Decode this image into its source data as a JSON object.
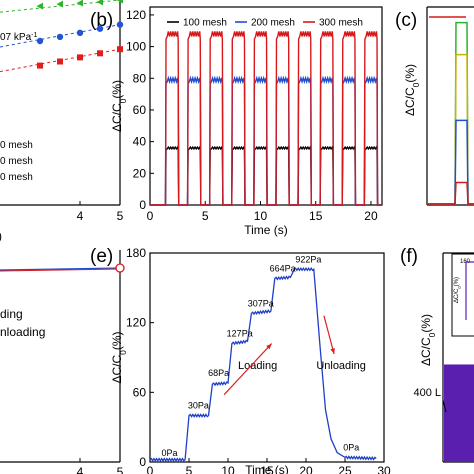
{
  "chart_data": [
    {
      "id": "a",
      "type": "scatter",
      "panel_label": "",
      "visible_text": [
        "07 kPa",
        "0 mesh",
        "0 mesh",
        "0 mesh",
        "4",
        "5"
      ],
      "sensitivity_unit": "-1",
      "xlim": [
        0,
        5
      ],
      "xticks": [
        4,
        5
      ],
      "legend_texts": [
        "0 mesh",
        "0 mesh",
        "0 mesh"
      ],
      "series": [
        {
          "color": "#2ab52a",
          "marker": "triangle-left",
          "x": [
            3.0,
            3.5,
            4.0,
            4.5,
            5.0
          ],
          "y_px_rank": "top",
          "values": [
            0.97,
            0.98,
            0.985,
            0.99,
            1.0
          ]
        },
        {
          "color": "#2255d6",
          "marker": "circle",
          "x": [
            3.0,
            3.5,
            4.0,
            4.5,
            5.0
          ],
          "values": [
            0.8,
            0.82,
            0.84,
            0.86,
            0.88
          ]
        },
        {
          "color": "#e11d1d",
          "marker": "square",
          "x": [
            3.0,
            3.5,
            4.0,
            4.5,
            5.0
          ],
          "values": [
            0.68,
            0.7,
            0.72,
            0.74,
            0.76
          ]
        }
      ]
    },
    {
      "id": "b",
      "type": "line",
      "panel_label": "(b)",
      "xlabel": "Time (s)",
      "ylabel": "ΔC/C0(%)",
      "xlim": [
        0,
        21
      ],
      "ylim": [
        0,
        125
      ],
      "xticks": [
        0,
        5,
        10,
        15,
        20
      ],
      "yticks": [
        0,
        20,
        40,
        60,
        80,
        100,
        120
      ],
      "legend": [
        "100 mesh",
        "200 mesh",
        "300 mesh"
      ],
      "cycles": {
        "count": 10,
        "first_rise": 1.4,
        "period": 2.0,
        "on_duration": 1.15
      },
      "series": [
        {
          "name": "100 mesh",
          "color": "#000000",
          "plateau": 36
        },
        {
          "name": "200 mesh",
          "color": "#1f4fd1",
          "plateau": 79
        },
        {
          "name": "300 mesh",
          "color": "#d7191c",
          "plateau": 108
        }
      ]
    },
    {
      "id": "c",
      "type": "line",
      "panel_label": "(c)",
      "ylabel": "ΔC/C0(%)",
      "series": [
        {
          "color": "#d7191c",
          "plateau": 1.0
        },
        {
          "color": "#2ab52a",
          "plateau": 0.97
        },
        {
          "color": "#c8b400",
          "plateau": 0.8
        },
        {
          "color": "#1f4fd1",
          "plateau": 0.45
        },
        {
          "color": "#d7191c",
          "plateau": 0.12
        }
      ]
    },
    {
      "id": "d",
      "type": "line",
      "panel_label": "",
      "visible_text": [
        "ding",
        "nloading",
        "4",
        "5"
      ],
      "xticks": [
        4,
        5
      ],
      "series": [
        {
          "color": "#1f4fd1",
          "x": [
            0,
            5
          ],
          "values": [
            0.9,
            0.93
          ]
        }
      ]
    },
    {
      "id": "e",
      "type": "line",
      "panel_label": "(e)",
      "xlabel": "Time (s)",
      "ylabel": "ΔC/C0(%)",
      "xlim": [
        0,
        30
      ],
      "ylim": [
        0,
        180
      ],
      "xticks": [
        0,
        5,
        10,
        15,
        20,
        25,
        30
      ],
      "yticks": [
        0,
        60,
        120,
        180
      ],
      "x": [
        0,
        4.5,
        5.0,
        7.5,
        8.0,
        10.0,
        10.5,
        12.5,
        13.0,
        15.5,
        16.0,
        18.0,
        18.5,
        21.0,
        21.8,
        22.5,
        23.2,
        24.0,
        25.0,
        29
      ],
      "values": [
        2,
        2,
        40,
        40,
        67,
        68,
        102,
        104,
        128,
        130,
        158,
        159,
        166,
        166,
        100,
        45,
        20,
        8,
        4,
        3
      ],
      "step_labels": [
        {
          "text": "0Pa",
          "x": 2.5,
          "y": 5
        },
        {
          "text": "30Pa",
          "x": 6.2,
          "y": 46
        },
        {
          "text": "68Pa",
          "x": 8.8,
          "y": 74
        },
        {
          "text": "127Pa",
          "x": 11.5,
          "y": 108
        },
        {
          "text": "307Pa",
          "x": 14.2,
          "y": 134
        },
        {
          "text": "664Pa",
          "x": 17.0,
          "y": 164
        },
        {
          "text": "922Pa",
          "x": 20.3,
          "y": 172
        },
        {
          "text": "0Pa",
          "x": 25.8,
          "y": 10
        }
      ],
      "annotations": [
        {
          "text": "Loading",
          "x": 13.8,
          "y": 80
        },
        {
          "text": "Unloading",
          "x": 24.5,
          "y": 80
        }
      ],
      "arrows": [
        {
          "from": [
            9.5,
            58
          ],
          "to": [
            15.6,
            102
          ]
        },
        {
          "from": [
            22.3,
            126
          ],
          "to": [
            23.6,
            93
          ]
        }
      ]
    },
    {
      "id": "f",
      "type": "area",
      "panel_label": "(f)",
      "ylabel": "ΔC/C0(%)",
      "visible_text": [
        "400 L",
        "160"
      ],
      "inset": {
        "ytick": "160",
        "ylabel": "ΔC/C0(%)"
      },
      "ylim": [
        0,
        180
      ],
      "band": [
        0,
        84
      ],
      "color": "#5b1fb0"
    }
  ]
}
